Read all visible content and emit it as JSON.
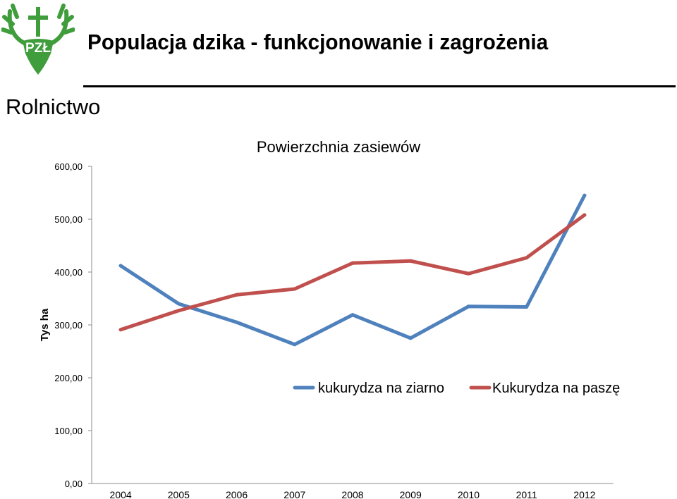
{
  "slide": {
    "title": "Populacja dzika - funkcjonowanie i zagrożenia",
    "section": "Rolnictwo",
    "logo_text": "PZŁ"
  },
  "colors": {
    "series1": "#4f81bd",
    "series2": "#c0504d",
    "logo_green": "#3f9d3c"
  },
  "chart_data": {
    "type": "line",
    "title": "Powierzchnia zasiewów",
    "xlabel": "",
    "ylabel": "Tys ha",
    "categories": [
      "2004",
      "2005",
      "2006",
      "2007",
      "2008",
      "2009",
      "2010",
      "2011",
      "2012"
    ],
    "ylim": [
      0,
      600
    ],
    "yticks": [
      "0,00",
      "100,00",
      "200,00",
      "300,00",
      "400,00",
      "500,00",
      "600,00"
    ],
    "grid": false,
    "legend_position": "center-right",
    "series": [
      {
        "name": "kukurydza na ziarno",
        "values": [
          412,
          340,
          305,
          263,
          319,
          275,
          335,
          334,
          545
        ]
      },
      {
        "name": "Kukurydza na paszę",
        "values": [
          291,
          327,
          357,
          368,
          417,
          421,
          397,
          427,
          508
        ]
      }
    ]
  }
}
